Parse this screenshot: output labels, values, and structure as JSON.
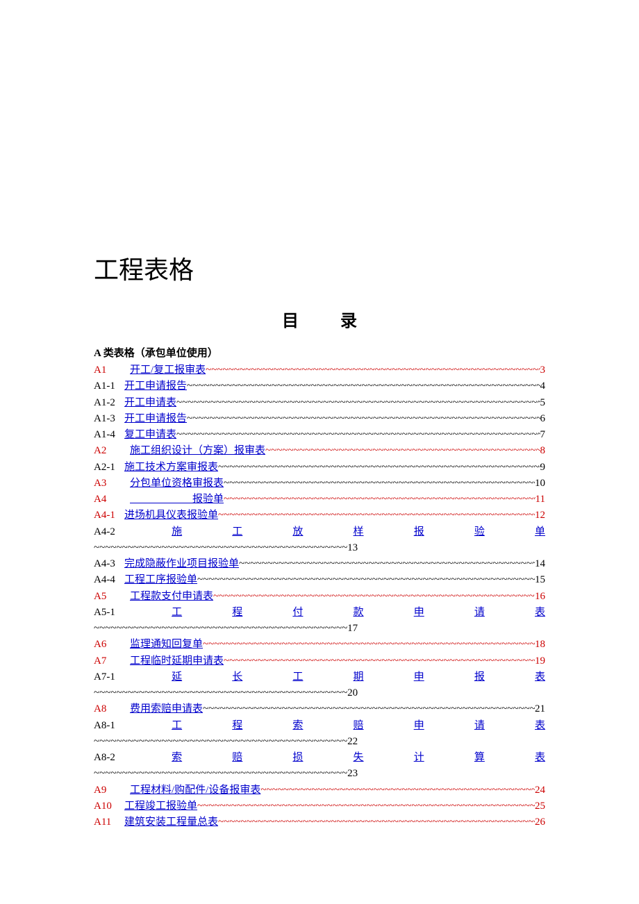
{
  "document": {
    "main_title": "工程表格",
    "toc_heading": "目录",
    "section_a_header": "A 类表格（承包单位使用）",
    "entries": [
      {
        "code": "A1",
        "code_red": true,
        "title": "开工/复工报审表",
        "page": "3",
        "red": true,
        "wrapped": false,
        "big_gap": true
      },
      {
        "code": "A1-1",
        "code_red": false,
        "title": "开工申请报告",
        "page": "4",
        "red": false,
        "wrapped": false,
        "big_gap": false
      },
      {
        "code": "A1-2",
        "code_red": false,
        "title": "开工申请表",
        "page": "5",
        "red": false,
        "wrapped": false,
        "big_gap": false
      },
      {
        "code": "A1-3",
        "code_red": false,
        "title": "开工申请报告",
        "page": "6",
        "red": false,
        "wrapped": false,
        "big_gap": false
      },
      {
        "code": "A1-4",
        "code_red": false,
        "title": "复工申请表",
        "page": "7",
        "red": false,
        "wrapped": false,
        "big_gap": false
      },
      {
        "code": "A2",
        "code_red": true,
        "title": "施工组织设计（方案）报审表",
        "page": "8",
        "red": true,
        "wrapped": false,
        "big_gap": true
      },
      {
        "code": "A2-1",
        "code_red": false,
        "title": "施工技术方案审报表",
        "page": "9",
        "red": false,
        "wrapped": false,
        "big_gap": false
      },
      {
        "code": "A3",
        "code_red": true,
        "title": "分包单位资格审报表",
        "page": "10",
        "red": false,
        "wrapped": false,
        "big_gap": true
      },
      {
        "code": "A4",
        "code_red": true,
        "title": "　　　　　　报验单",
        "page": "11",
        "red": true,
        "wrapped": false,
        "big_gap": true
      },
      {
        "code": "A4-1",
        "code_red": true,
        "title": "进场机具仪表报验单",
        "page": "12",
        "red": true,
        "wrapped": false,
        "big_gap": false
      },
      {
        "code": "A4-2",
        "code_red": false,
        "title_chars": [
          "施",
          "工",
          "放",
          "样",
          "报",
          "验",
          "单"
        ],
        "page": "13",
        "red": false,
        "wrapped": true
      },
      {
        "code": "A4-3",
        "code_red": false,
        "title": "完成隐蔽作业项目报验单",
        "page": "14",
        "red": false,
        "wrapped": false,
        "big_gap": false
      },
      {
        "code": "A4-4",
        "code_red": false,
        "title": "工程工序报验单",
        "page": "15",
        "red": false,
        "wrapped": false,
        "big_gap": false
      },
      {
        "code": "A5",
        "code_red": true,
        "title": "工程款支付申请表",
        "page": "16",
        "red": true,
        "wrapped": false,
        "big_gap": true
      },
      {
        "code": "A5-1",
        "code_red": false,
        "title_chars": [
          "工",
          "程",
          "付",
          "款",
          "申",
          "请",
          "表"
        ],
        "page": "17",
        "red": false,
        "wrapped": true
      },
      {
        "code": "A6",
        "code_red": true,
        "title": "监理通知回复单",
        "page": "18",
        "red": true,
        "wrapped": false,
        "big_gap": true,
        "trailing_space": true
      },
      {
        "code": "A7",
        "code_red": true,
        "title": "工程临时延期申请表",
        "page": "19",
        "red": true,
        "wrapped": false,
        "big_gap": true
      },
      {
        "code": "A7-1",
        "code_red": false,
        "title_chars": [
          "延",
          "长",
          "工",
          "期",
          "申",
          "报",
          "表"
        ],
        "page": "20",
        "red": false,
        "wrapped": true
      },
      {
        "code": "A8",
        "code_red": true,
        "title": "费用索赔申请表",
        "page": "21",
        "red": false,
        "wrapped": false,
        "big_gap": true
      },
      {
        "code": "A8-1",
        "code_red": false,
        "title_chars": [
          "工",
          "程",
          "索",
          "赔",
          "申",
          "请",
          "表"
        ],
        "page": "22",
        "red": false,
        "wrapped": true
      },
      {
        "code": "A8-2",
        "code_red": false,
        "title_chars": [
          "索",
          "赔",
          "损",
          "失",
          "计",
          "算",
          "表"
        ],
        "page": "23",
        "red": false,
        "wrapped": true
      },
      {
        "code": "A9",
        "code_red": true,
        "title": "工程材料/购配件/设备报审表",
        "page": "24",
        "red": true,
        "wrapped": false,
        "big_gap": true
      },
      {
        "code": "A10",
        "code_red": true,
        "title": "工程竣工报验单",
        "page": "25",
        "red": true,
        "wrapped": false,
        "big_gap": false
      },
      {
        "code": "A11",
        "code_red": true,
        "title": "建筑安装工程量总表",
        "page": "26",
        "red": true,
        "wrapped": false,
        "big_gap": false
      }
    ],
    "leader_char": "~",
    "colors": {
      "red": "#cc0000",
      "blue": "#0000cc",
      "black": "#000000",
      "background": "#ffffff"
    },
    "fonts": {
      "main_title_size": 36,
      "toc_heading_size": 24,
      "body_size": 15
    }
  }
}
